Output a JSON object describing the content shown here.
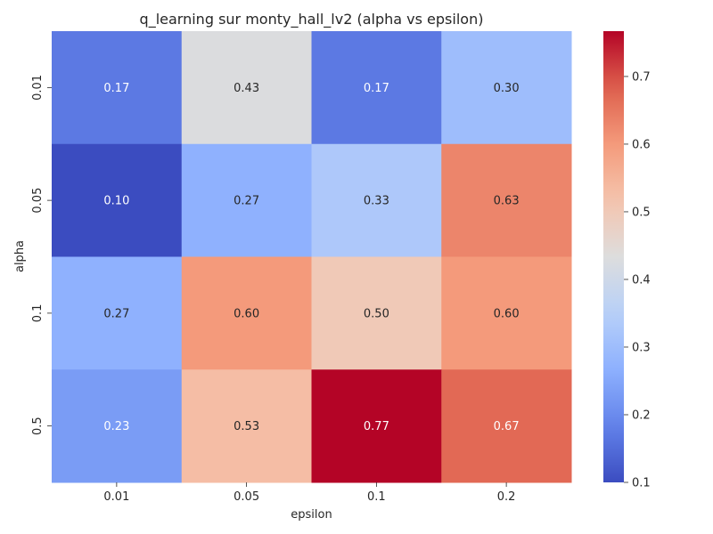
{
  "chart_data": {
    "type": "heatmap",
    "title": "q_learning sur monty_hall_lv2 (alpha vs epsilon)",
    "xlabel": "epsilon",
    "ylabel": "alpha",
    "x_categories": [
      "0.01",
      "0.05",
      "0.1",
      "0.2"
    ],
    "y_categories": [
      "0.01",
      "0.05",
      "0.1",
      "0.5"
    ],
    "values": [
      [
        0.17,
        0.43,
        0.17,
        0.3
      ],
      [
        0.1,
        0.27,
        0.33,
        0.63
      ],
      [
        0.27,
        0.6,
        0.5,
        0.6
      ],
      [
        0.23,
        0.53,
        0.77,
        0.67
      ]
    ],
    "value_labels": [
      [
        "0.17",
        "0.43",
        "0.17",
        "0.30"
      ],
      [
        "0.10",
        "0.27",
        "0.33",
        "0.63"
      ],
      [
        "0.27",
        "0.60",
        "0.50",
        "0.60"
      ],
      [
        "0.23",
        "0.53",
        "0.77",
        "0.67"
      ]
    ],
    "colormap": "coolwarm",
    "colorbar": {
      "range": [
        0.1,
        0.767
      ],
      "ticks": [
        "0.1",
        "0.2",
        "0.3",
        "0.4",
        "0.5",
        "0.6",
        "0.7"
      ]
    }
  }
}
